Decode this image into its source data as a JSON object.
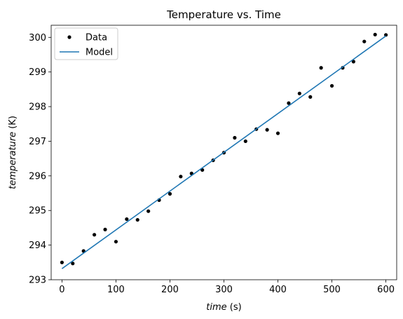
{
  "chart_data": {
    "type": "scatter",
    "title": "Temperature vs. Time",
    "xlabel": {
      "var": "time",
      "unit": " (s)"
    },
    "ylabel": {
      "var": "temperature",
      "unit": " (K)"
    },
    "xlim": [
      -20,
      620
    ],
    "ylim": [
      293,
      300.35
    ],
    "xticks": [
      0,
      100,
      200,
      300,
      400,
      500,
      600
    ],
    "yticks": [
      293,
      294,
      295,
      296,
      297,
      298,
      299,
      300
    ],
    "grid": false,
    "legend": {
      "placement": "top-left",
      "entries": [
        "Data",
        "Model"
      ]
    },
    "series": [
      {
        "name": "Data",
        "kind": "scatter",
        "color": "#000000",
        "x": [
          0,
          20,
          40,
          60,
          80,
          100,
          120,
          140,
          160,
          180,
          200,
          220,
          240,
          260,
          280,
          300,
          320,
          340,
          360,
          380,
          400,
          420,
          440,
          460,
          480,
          500,
          520,
          540,
          560,
          580,
          600
        ],
        "y": [
          293.5,
          293.47,
          293.83,
          294.3,
          294.45,
          294.1,
          294.75,
          294.73,
          294.98,
          295.3,
          295.48,
          295.98,
          296.07,
          296.17,
          296.45,
          296.67,
          297.1,
          297.0,
          297.35,
          297.33,
          297.23,
          298.1,
          298.38,
          298.28,
          299.12,
          298.6,
          299.12,
          299.3,
          299.88,
          300.08,
          300.07
        ]
      },
      {
        "name": "Model",
        "kind": "line",
        "color": "#1f77b4",
        "x": [
          0,
          600
        ],
        "y": [
          293.32,
          300.04
        ]
      }
    ]
  }
}
